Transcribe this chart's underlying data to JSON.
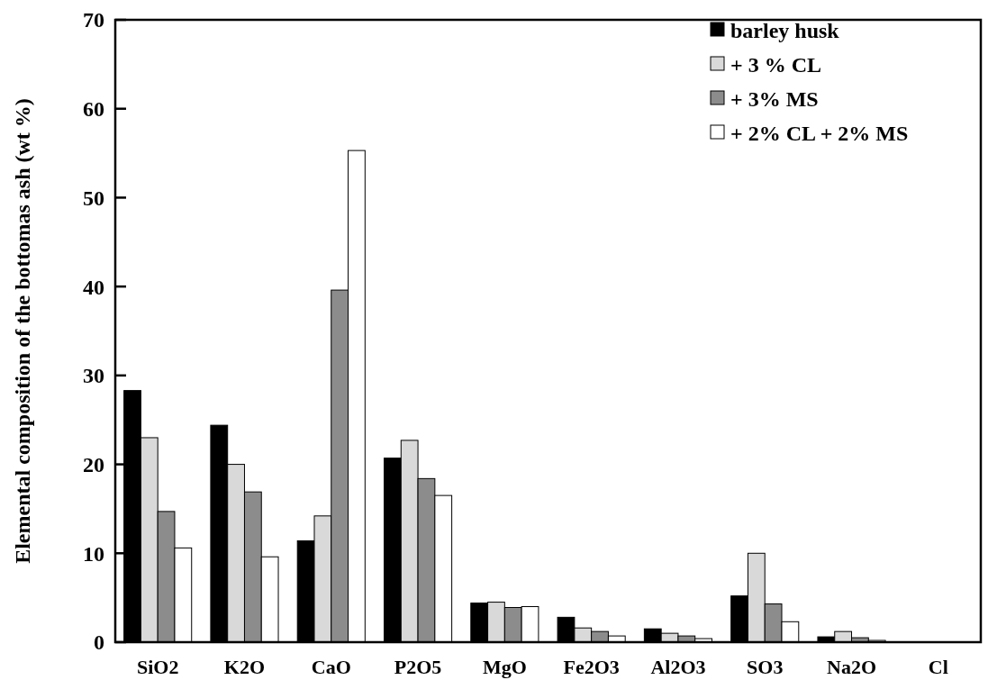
{
  "chart_data": {
    "type": "bar",
    "ylabel": "Elemental composition of the bottomas ash  (wt %)",
    "categories": [
      "SiO2",
      "K2O",
      "CaO",
      "P2O5",
      "MgO",
      "Fe2O3",
      "Al2O3",
      "SO3",
      "Na2O",
      "Cl"
    ],
    "series": [
      {
        "name": "barley husk",
        "color": "#000000",
        "values": [
          28.3,
          24.4,
          11.4,
          20.7,
          4.4,
          2.8,
          1.5,
          5.2,
          0.6,
          0
        ]
      },
      {
        "name": "+ 3 % CL",
        "color": "#d9d9d9",
        "values": [
          23,
          20,
          14.2,
          22.7,
          4.5,
          1.6,
          1.0,
          10.0,
          1.2,
          0
        ]
      },
      {
        "name": "+ 3% MS",
        "color": "#8c8c8c",
        "values": [
          14.7,
          16.9,
          39.6,
          18.4,
          3.9,
          1.2,
          0.7,
          4.3,
          0.5,
          0
        ]
      },
      {
        "name": "+ 2% CL + 2% MS",
        "color": "#ffffff",
        "values": [
          10.6,
          9.6,
          55.3,
          16.5,
          4.0,
          0.7,
          0.4,
          2.3,
          0.2,
          0
        ]
      }
    ],
    "ylim": [
      0,
      70
    ],
    "yticks": [
      0,
      10,
      20,
      30,
      40,
      50,
      60,
      70
    ],
    "legend": "top right"
  }
}
